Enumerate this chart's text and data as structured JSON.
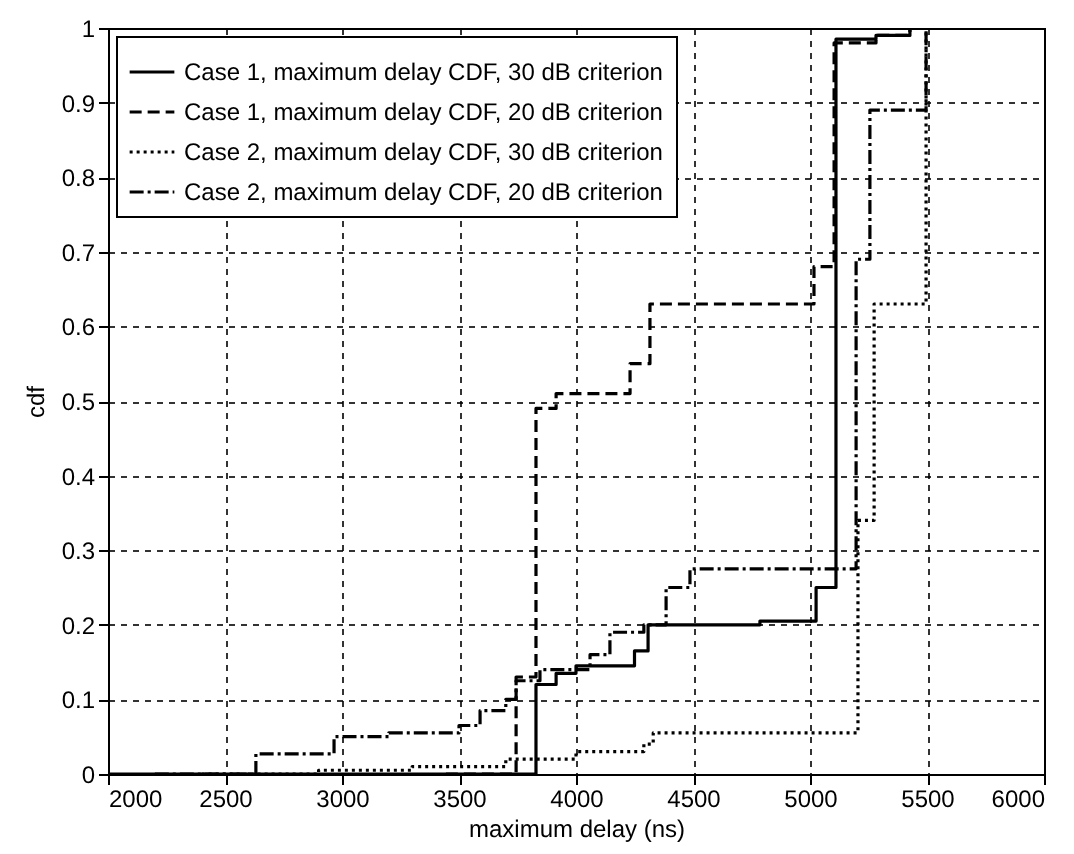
{
  "chart_data": {
    "type": "step",
    "xlabel": "maximum delay (ns)",
    "ylabel": "cdf",
    "xlim": [
      2000,
      6000
    ],
    "xticks": [
      2000,
      2500,
      3000,
      3500,
      4000,
      4500,
      5000,
      5500,
      6000
    ],
    "ylim": [
      0,
      1
    ],
    "yticks": [
      0,
      0.1,
      0.2,
      0.3,
      0.4,
      0.5,
      0.6,
      0.7,
      0.8,
      0.9,
      1
    ],
    "grid": true,
    "legend": "top left",
    "marker": "none",
    "series": [
      {
        "name": "Case 1, maximum delay CDF, 30 dB criterion",
        "color": "#000000",
        "line_style": "solid",
        "x": [
          2000,
          3829,
          3915,
          4000,
          4250,
          4308,
          4786,
          5026,
          5111,
          5282,
          5427
        ],
        "values": [
          0,
          0.12,
          0.135,
          0.145,
          0.165,
          0.2,
          0.205,
          0.25,
          0.985,
          0.99,
          1
        ]
      },
      {
        "name": "Case 1, maximum delay CDF, 20 dB criterion",
        "color": "#000000",
        "line_style": "dashed",
        "x": [
          3444,
          3744,
          3829,
          3915,
          4231,
          4316,
          5017,
          5103,
          5282,
          5427
        ],
        "values": [
          0,
          0.13,
          0.49,
          0.51,
          0.55,
          0.63,
          0.68,
          0.98,
          0.99,
          1
        ]
      },
      {
        "name": "Case 2, maximum delay CDF, 30 dB criterion",
        "color": "#000000",
        "line_style": "dotted",
        "x": [
          2400,
          2900,
          3300,
          3700,
          4000,
          4290,
          4330,
          5205,
          5274,
          5496
        ],
        "values": [
          0,
          0.005,
          0.01,
          0.02,
          0.03,
          0.04,
          0.055,
          0.34,
          0.63,
          1
        ]
      },
      {
        "name": "Case 2, maximum delay CDF, 20 dB criterion",
        "color": "#000000",
        "line_style": "dashdot",
        "x": [
          2200,
          2632,
          2966,
          3200,
          3500,
          3590,
          3700,
          3744,
          3846,
          4060,
          4145,
          4290,
          4385,
          4487,
          5197,
          5256,
          5496
        ],
        "values": [
          0,
          0.027,
          0.05,
          0.055,
          0.065,
          0.085,
          0.1,
          0.125,
          0.14,
          0.16,
          0.19,
          0.2,
          0.25,
          0.275,
          0.69,
          0.89,
          1
        ]
      }
    ]
  }
}
